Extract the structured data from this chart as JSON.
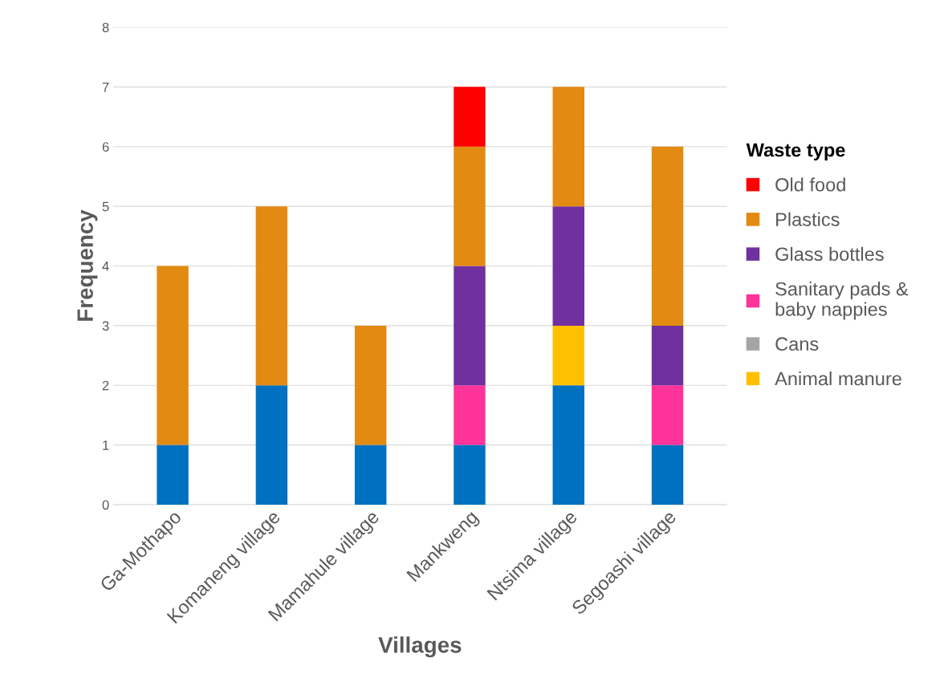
{
  "chart_data": {
    "type": "bar",
    "stacked": true,
    "xlabel": "Villages",
    "ylabel": "Frequency",
    "legend_title": "Waste type",
    "categories": [
      "Ga-Mothapo",
      "Komaneng village",
      "Mamahule village",
      "Mankweng",
      "Ntsima village",
      "Segoashi village"
    ],
    "series": [
      {
        "color": "#0070c0",
        "values": [
          1,
          2,
          1,
          1,
          2,
          1
        ]
      },
      {
        "name": "Animal manure",
        "color": "#ffc000",
        "values": [
          0,
          0,
          0,
          0,
          1,
          0
        ]
      },
      {
        "name": "Cans",
        "color": "#a5a5a5",
        "values": [
          0,
          0,
          0,
          0,
          0,
          0
        ]
      },
      {
        "name": "Sanitary pads &\nbaby nappies",
        "color": "#ff3399",
        "values": [
          0,
          0,
          0,
          1,
          0,
          1
        ]
      },
      {
        "name": "Glass bottles",
        "color": "#7030a0",
        "values": [
          0,
          0,
          0,
          2,
          2,
          1
        ]
      },
      {
        "name": "Plastics",
        "color": "#e38a12",
        "values": [
          3,
          3,
          2,
          2,
          2,
          3
        ]
      },
      {
        "name": "Old food",
        "color": "#ff0000",
        "values": [
          0,
          0,
          0,
          1,
          0,
          0
        ]
      }
    ],
    "ylim": [
      0,
      8
    ],
    "yticks": [
      0,
      1,
      2,
      3,
      4,
      5,
      6,
      7,
      8
    ],
    "grid": "y",
    "legend": "right"
  }
}
